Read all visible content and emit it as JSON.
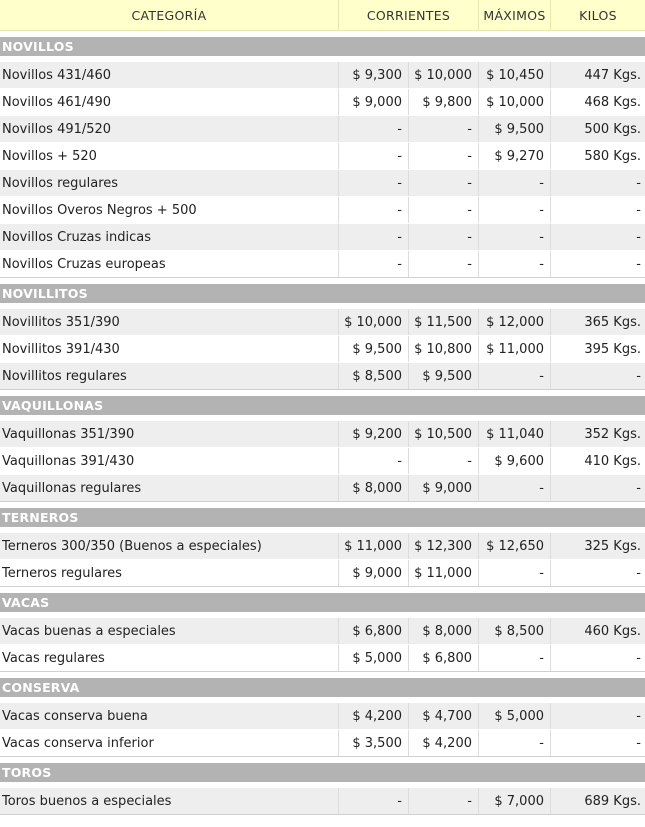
{
  "header": {
    "categoria": "CATEGORÍA",
    "corrientes": "CORRIENTES",
    "maximos": "MÁXIMOS",
    "kilos": "KILOS"
  },
  "sections": [
    {
      "title": "NOVILLOS",
      "rows": [
        {
          "name": "Novillos 431/460",
          "c1": "$ 9,300",
          "c2": "$ 10,000",
          "max": "$ 10,450",
          "kilos": "447 Kgs."
        },
        {
          "name": "Novillos 461/490",
          "c1": "$ 9,000",
          "c2": "$ 9,800",
          "max": "$ 10,000",
          "kilos": "468 Kgs."
        },
        {
          "name": "Novillos 491/520",
          "c1": "-",
          "c2": "-",
          "max": "$ 9,500",
          "kilos": "500 Kgs."
        },
        {
          "name": "Novillos + 520",
          "c1": "-",
          "c2": "-",
          "max": "$ 9,270",
          "kilos": "580 Kgs."
        },
        {
          "name": "Novillos regulares",
          "c1": "-",
          "c2": "-",
          "max": "-",
          "kilos": "-"
        },
        {
          "name": "Novillos Overos Negros + 500",
          "c1": "-",
          "c2": "-",
          "max": "-",
          "kilos": "-"
        },
        {
          "name": "Novillos Cruzas indicas",
          "c1": "-",
          "c2": "-",
          "max": "-",
          "kilos": "-"
        },
        {
          "name": "Novillos Cruzas europeas",
          "c1": "-",
          "c2": "-",
          "max": "-",
          "kilos": "-"
        }
      ]
    },
    {
      "title": "NOVILLITOS",
      "rows": [
        {
          "name": "Novillitos 351/390",
          "c1": "$ 10,000",
          "c2": "$ 11,500",
          "max": "$ 12,000",
          "kilos": "365 Kgs."
        },
        {
          "name": "Novillitos 391/430",
          "c1": "$ 9,500",
          "c2": "$ 10,800",
          "max": "$ 11,000",
          "kilos": "395 Kgs."
        },
        {
          "name": "Novillitos regulares",
          "c1": "$ 8,500",
          "c2": "$ 9,500",
          "max": "-",
          "kilos": "-"
        }
      ]
    },
    {
      "title": "VAQUILLONAS",
      "rows": [
        {
          "name": "Vaquillonas 351/390",
          "c1": "$ 9,200",
          "c2": "$ 10,500",
          "max": "$ 11,040",
          "kilos": "352 Kgs."
        },
        {
          "name": "Vaquillonas 391/430",
          "c1": "-",
          "c2": "-",
          "max": "$ 9,600",
          "kilos": "410 Kgs."
        },
        {
          "name": "Vaquillonas regulares",
          "c1": "$ 8,000",
          "c2": "$ 9,000",
          "max": "-",
          "kilos": "-"
        }
      ]
    },
    {
      "title": "TERNEROS",
      "rows": [
        {
          "name": "Terneros 300/350 (Buenos a especiales)",
          "c1": "$ 11,000",
          "c2": "$ 12,300",
          "max": "$ 12,650",
          "kilos": "325 Kgs."
        },
        {
          "name": "Terneros regulares",
          "c1": "$ 9,000",
          "c2": "$ 11,000",
          "max": "-",
          "kilos": "-"
        }
      ]
    },
    {
      "title": "VACAS",
      "rows": [
        {
          "name": "Vacas buenas a especiales",
          "c1": "$ 6,800",
          "c2": "$ 8,000",
          "max": "$ 8,500",
          "kilos": "460 Kgs."
        },
        {
          "name": "Vacas regulares",
          "c1": "$ 5,000",
          "c2": "$ 6,800",
          "max": "-",
          "kilos": "-"
        }
      ]
    },
    {
      "title": "CONSERVA",
      "rows": [
        {
          "name": "Vacas conserva buena",
          "c1": "$ 4,200",
          "c2": "$ 4,700",
          "max": "$ 5,000",
          "kilos": "-"
        },
        {
          "name": "Vacas conserva inferior",
          "c1": "$ 3,500",
          "c2": "$ 4,200",
          "max": "-",
          "kilos": "-"
        }
      ]
    },
    {
      "title": "TOROS",
      "rows": [
        {
          "name": "Toros buenos a especiales",
          "c1": "-",
          "c2": "-",
          "max": "$ 7,000",
          "kilos": "689 Kgs."
        }
      ]
    }
  ]
}
